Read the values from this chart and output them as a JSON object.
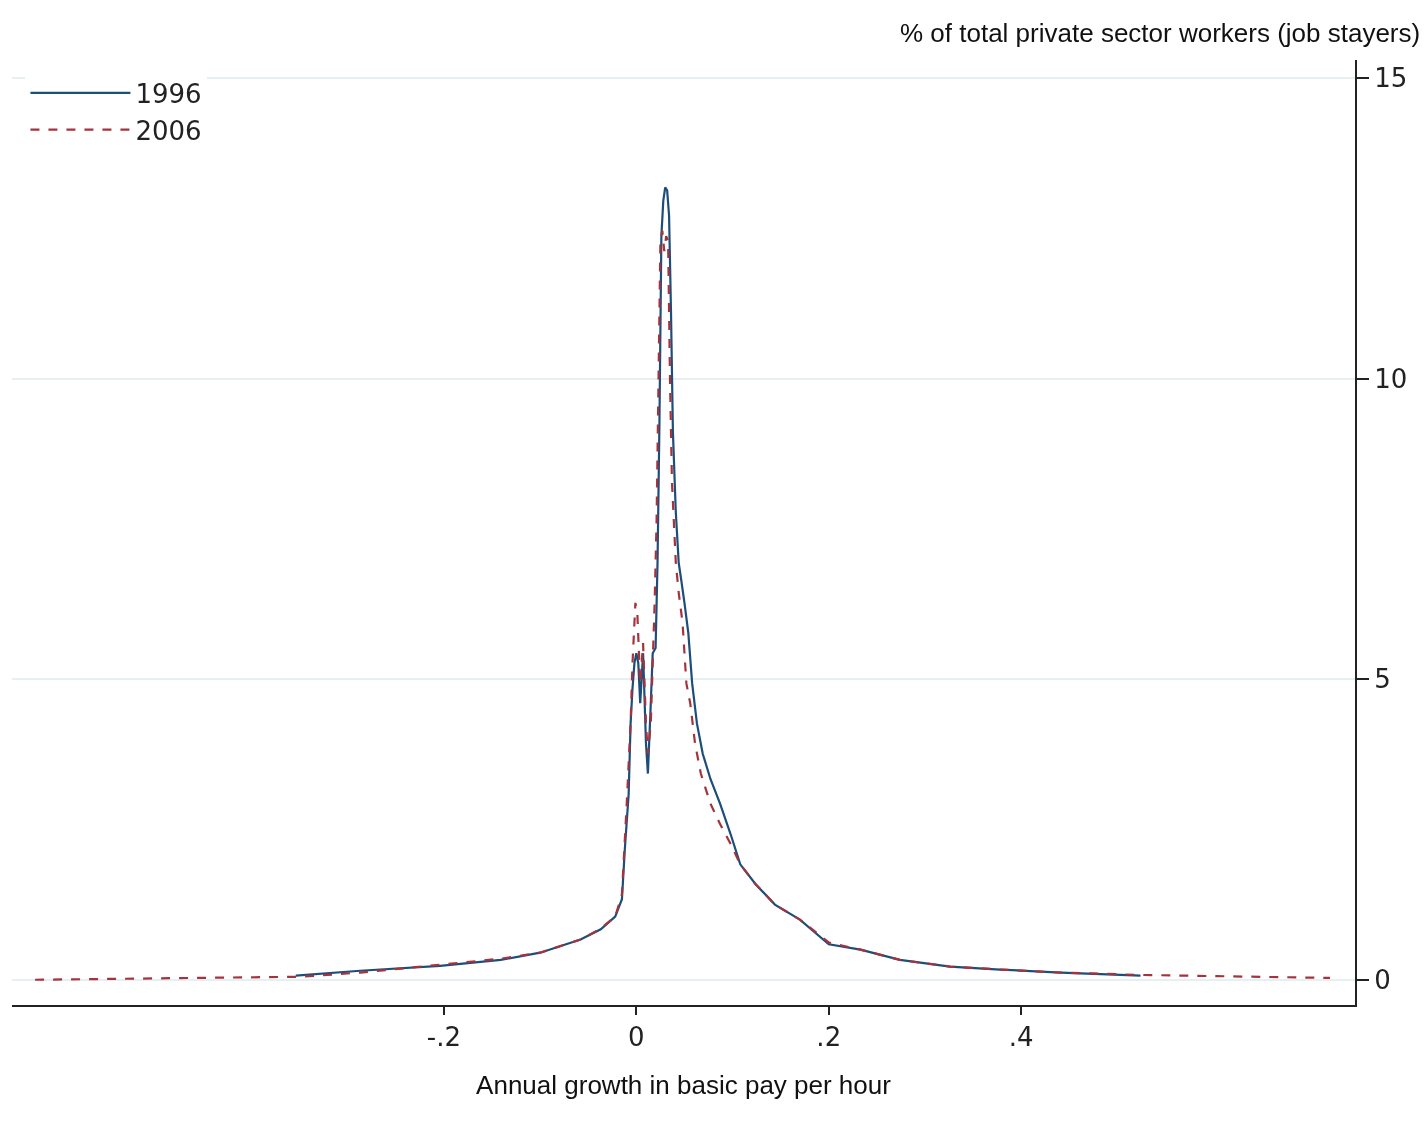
{
  "chart_data": {
    "type": "line",
    "xlabel": "Annual growth in basic pay per hour",
    "ylabel": "% of total private sector workers (job stayers)",
    "series": [
      {
        "name": "1996",
        "color": "#1d4e7a",
        "line_style": "solid",
        "x": [
          -0.354,
          -0.287,
          -0.204,
          -0.141,
          -0.1,
          -0.058,
          -0.037,
          -0.022,
          -0.015,
          -0.012,
          -0.008,
          -0.006,
          -0.004,
          -0.002,
          0,
          0.002,
          0.004,
          0.007,
          0.01,
          0.012,
          0.015,
          0.017,
          0.02,
          0.022,
          0.024,
          0.026,
          0.028,
          0.03,
          0.032,
          0.034,
          0.036,
          0.038,
          0.041,
          0.044,
          0.047,
          0.05,
          0.054,
          0.058,
          0.063,
          0.069,
          0.077,
          0.087,
          0.098,
          0.108,
          0.124,
          0.144,
          0.17,
          0.2,
          0.233,
          0.274,
          0.326,
          0.378,
          0.441,
          0.524
        ],
        "values": [
          0.07,
          0.15,
          0.23,
          0.33,
          0.45,
          0.67,
          0.84,
          1.05,
          1.34,
          2.17,
          3.09,
          4.26,
          4.85,
          5.27,
          5.43,
          5.27,
          4.6,
          5.43,
          3.93,
          3.43,
          4.6,
          5.43,
          5.52,
          6.94,
          9.28,
          12.37,
          12.96,
          13.18,
          13.13,
          12.71,
          11.12,
          9.11,
          7.78,
          6.94,
          6.61,
          6.27,
          5.77,
          4.93,
          4.26,
          3.76,
          3.34,
          2.93,
          2.42,
          1.92,
          1.59,
          1.25,
          1.0,
          0.59,
          0.5,
          0.33,
          0.22,
          0.17,
          0.12,
          0.07
        ]
      },
      {
        "name": "2006",
        "color": "#a3343e",
        "line_style": "dashed",
        "x": [
          -0.625,
          -0.349,
          -0.287,
          -0.204,
          -0.141,
          -0.1,
          -0.058,
          -0.037,
          -0.022,
          -0.015,
          -0.01,
          -0.006,
          -0.004,
          -0.001,
          0.001,
          0.004,
          0.007,
          0.01,
          0.012,
          0.015,
          0.017,
          0.019,
          0.021,
          0.023,
          0.025,
          0.027,
          0.029,
          0.031,
          0.033,
          0.035,
          0.037,
          0.041,
          0.044,
          0.048,
          0.052,
          0.056,
          0.061,
          0.067,
          0.077,
          0.087,
          0.098,
          0.108,
          0.124,
          0.144,
          0.17,
          0.2,
          0.233,
          0.274,
          0.326,
          0.378,
          0.441,
          0.524,
          0.721
        ],
        "values": [
          0,
          0.05,
          0.12,
          0.25,
          0.35,
          0.45,
          0.67,
          0.85,
          1.05,
          1.42,
          2.93,
          4.26,
          5.27,
          6.27,
          6.1,
          4.93,
          5.6,
          4.26,
          3.76,
          4.26,
          5.27,
          6.27,
          7.61,
          9.95,
          12.29,
          12.46,
          12.12,
          12.37,
          12.29,
          9.95,
          8.28,
          6.94,
          6.44,
          5.94,
          4.93,
          4.6,
          3.93,
          3.43,
          2.93,
          2.59,
          2.26,
          1.92,
          1.59,
          1.25,
          1.0,
          0.62,
          0.5,
          0.33,
          0.22,
          0.17,
          0.12,
          0.08,
          0.03
        ]
      }
    ],
    "xlim": [
      -0.649,
      0.747
    ],
    "xticks": [
      {
        "value": -0.2,
        "label": "-.2"
      },
      0,
      {
        "value": 0.2,
        "label": ".2"
      },
      {
        "value": 0.4,
        "label": ".4"
      }
    ],
    "ylim": [
      -0.42,
      15.3
    ],
    "yticks": [
      0,
      5,
      10,
      15
    ],
    "grid": "y",
    "legend": "top left"
  }
}
